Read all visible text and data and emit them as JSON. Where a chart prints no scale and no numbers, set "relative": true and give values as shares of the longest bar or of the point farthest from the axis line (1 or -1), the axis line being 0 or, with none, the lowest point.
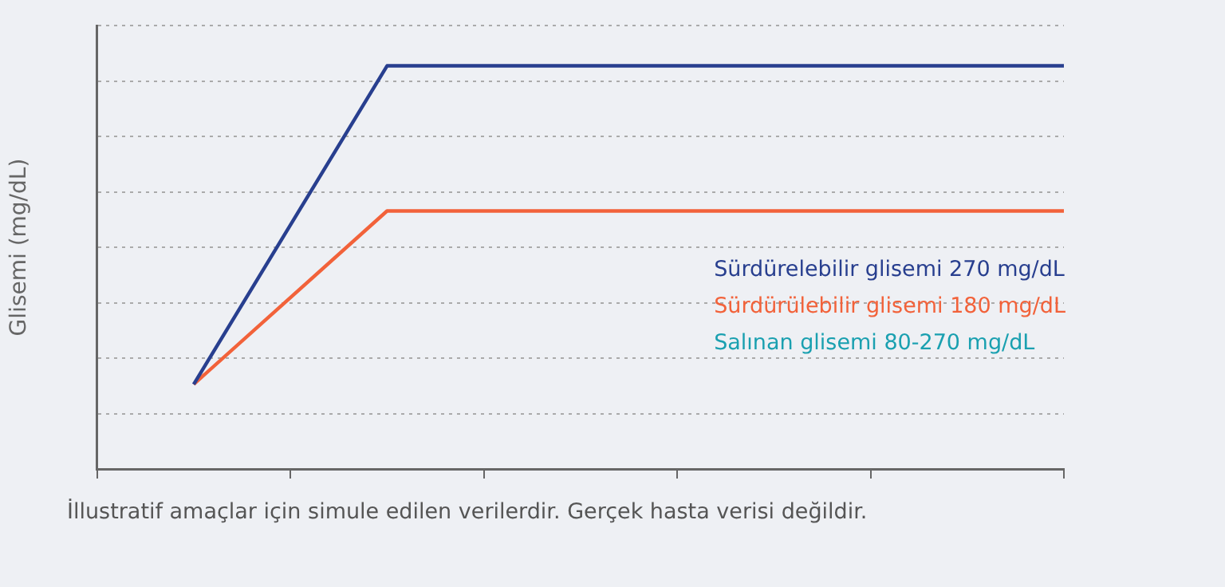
{
  "chart_data": {
    "type": "line",
    "relative": true,
    "ylabel": "Glisemi (mg/dL)",
    "categories": [
      null,
      null,
      null,
      null,
      null,
      null,
      null,
      null,
      null,
      null,
      null
    ],
    "series": [
      {
        "name": "Sürdürelebilir glisemi 270 mg/dL",
        "color": "#283f8f",
        "values": [
          null,
          0.21,
          null,
          1,
          1,
          1,
          1,
          1,
          1,
          1,
          1
        ]
      },
      {
        "name": "Sürdürülebilir glisemi 180 mg/dL",
        "color": "#f2623a",
        "values": [
          null,
          0.21,
          null,
          0.64,
          0.64,
          0.64,
          0.64,
          0.64,
          0.64,
          0.64,
          0.64
        ]
      }
    ],
    "grid": "y",
    "legend": "bottom right",
    "marker": "none",
    "line_style": "solid",
    "tick_labels": false,
    "annotations": [
      "Salınan glisemi 80-270 mg/dL",
      "İllustratif amaçlar için simule edilen verilerdir. Gerçek hasta verisi değildir."
    ]
  }
}
